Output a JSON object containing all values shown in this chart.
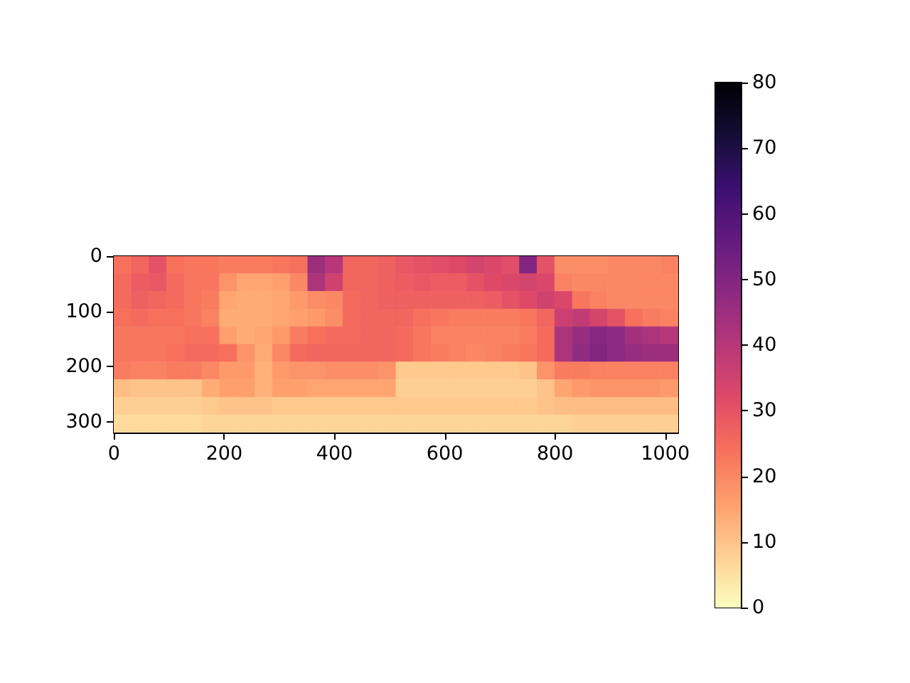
{
  "chart_data": {
    "type": "heatmap",
    "x": [
      15.5,
      47.5,
      79.5,
      111.5,
      143.5,
      175.5,
      207.5,
      239.5,
      271.5,
      303.5,
      335.5,
      367.5,
      399.5,
      431.5,
      463.5,
      495.5,
      527.5,
      559.5,
      591.5,
      623.5,
      655.5,
      687.5,
      719.5,
      751.5,
      783.5,
      815.5,
      847.5,
      879.5,
      911.5,
      943.5,
      975.5,
      1007.5
    ],
    "y": [
      15.5,
      47.5,
      79.5,
      111.5,
      143.5,
      175.5,
      207.5,
      239.5,
      271.5,
      303.5
    ],
    "cells": [
      [
        24,
        26,
        30,
        24,
        23,
        23,
        22,
        22,
        22,
        23,
        24,
        45,
        40,
        26,
        26,
        27,
        29,
        30,
        31,
        32,
        34,
        33,
        31,
        50,
        30,
        19,
        19,
        19,
        20,
        20,
        20,
        21
      ],
      [
        25,
        28,
        29,
        25,
        23,
        23,
        18,
        15,
        15,
        16,
        20,
        42,
        35,
        26,
        26,
        27,
        28,
        29,
        28,
        28,
        30,
        32,
        33,
        34,
        33,
        21,
        20,
        20,
        20,
        20,
        20,
        20
      ],
      [
        25,
        27,
        26,
        25,
        23,
        22,
        15,
        14,
        14,
        15,
        17,
        19,
        20,
        25,
        26,
        27,
        27,
        27,
        27,
        27,
        27,
        28,
        30,
        32,
        35,
        33,
        23,
        21,
        20,
        20,
        20,
        20
      ],
      [
        24,
        25,
        24,
        24,
        23,
        21,
        14,
        14,
        14,
        15,
        16,
        17,
        19,
        25,
        26,
        26,
        26,
        24,
        23,
        22,
        22,
        22,
        22,
        23,
        26,
        36,
        38,
        34,
        30,
        24,
        22,
        21
      ],
      [
        23,
        23,
        23,
        23,
        24,
        24,
        16,
        14,
        15,
        17,
        22,
        24,
        25,
        25,
        26,
        26,
        25,
        23,
        21,
        21,
        21,
        21,
        21,
        22,
        25,
        42,
        46,
        49,
        48,
        44,
        42,
        40
      ],
      [
        23,
        23,
        23,
        24,
        25,
        25,
        24,
        18,
        14,
        20,
        25,
        26,
        26,
        26,
        26,
        26,
        25,
        23,
        22,
        21,
        20,
        21,
        22,
        23,
        25,
        42,
        47,
        50,
        48,
        46,
        45,
        45
      ],
      [
        22,
        21,
        21,
        22,
        22,
        20,
        17,
        17,
        13,
        17,
        18,
        18,
        19,
        19,
        19,
        18,
        9,
        9,
        9,
        9,
        9,
        9,
        9,
        10,
        18,
        22,
        22,
        21,
        21,
        21,
        21,
        21
      ],
      [
        11,
        10,
        10,
        10,
        10,
        14,
        16,
        16,
        13,
        16,
        16,
        15,
        15,
        15,
        15,
        15,
        8,
        8,
        8,
        8,
        8,
        8,
        8,
        8,
        10,
        15,
        17,
        18,
        18,
        18,
        18,
        17
      ],
      [
        8,
        8,
        8,
        8,
        8,
        9,
        10,
        10,
        10,
        9,
        9,
        9,
        9,
        9,
        9,
        9,
        9,
        9,
        9,
        9,
        9,
        9,
        9,
        9,
        10,
        11,
        11,
        11,
        11,
        11,
        11,
        11
      ],
      [
        6,
        6,
        6,
        6,
        6,
        7,
        7,
        7,
        7,
        7,
        7,
        7,
        7,
        7,
        7,
        7,
        7,
        7,
        7,
        7,
        7,
        7,
        7,
        7,
        7,
        7,
        8,
        8,
        8,
        8,
        8,
        8
      ]
    ],
    "xlim": [
      -0.5,
      1023.5
    ],
    "xticks": [
      0,
      200,
      400,
      600,
      800,
      1000
    ],
    "ylim": [
      319.5,
      -0.5
    ],
    "yticks": [
      0,
      100,
      200,
      300
    ],
    "clim": [
      0,
      80
    ],
    "cticks": [
      0,
      10,
      20,
      30,
      40,
      50,
      60,
      70,
      80
    ]
  }
}
